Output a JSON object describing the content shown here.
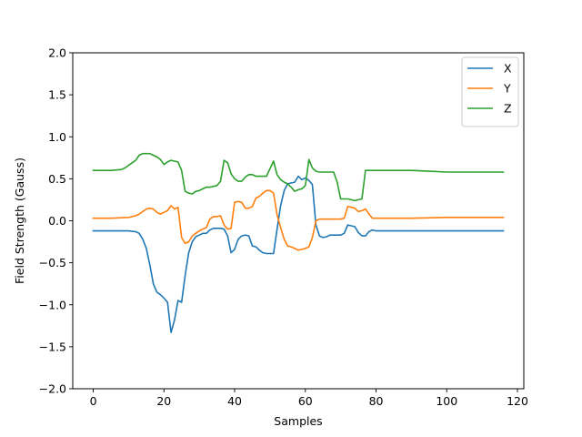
{
  "chart_data": {
    "type": "line",
    "title": "",
    "xlabel": "Samples",
    "ylabel": "Field Strength (Gauss)",
    "xlim": [
      -5.8,
      121.8
    ],
    "ylim": [
      -2.0,
      2.0
    ],
    "x_ticks": [
      0,
      20,
      40,
      60,
      80,
      100,
      120
    ],
    "y_ticks": [
      -2.0,
      -1.5,
      -1.0,
      -0.5,
      0.0,
      0.5,
      1.0,
      1.5,
      2.0
    ],
    "x_tick_labels": [
      "0",
      "20",
      "40",
      "60",
      "80",
      "100",
      "120"
    ],
    "y_tick_labels": [
      "−2.0",
      "−1.5",
      "−1.0",
      "−0.5",
      "0.0",
      "0.5",
      "1.0",
      "1.5",
      "2.0"
    ],
    "grid": false,
    "legend": {
      "position": "top-right"
    },
    "series": [
      {
        "name": "X",
        "color": "#1f77b4",
        "points": [
          [
            0,
            -0.12
          ],
          [
            5,
            -0.12
          ],
          [
            10,
            -0.12
          ],
          [
            12,
            -0.13
          ],
          [
            13,
            -0.15
          ],
          [
            14,
            -0.22
          ],
          [
            15,
            -0.33
          ],
          [
            16,
            -0.52
          ],
          [
            17,
            -0.75
          ],
          [
            18,
            -0.85
          ],
          [
            19,
            -0.88
          ],
          [
            20,
            -0.92
          ],
          [
            21,
            -0.97
          ],
          [
            22,
            -1.33
          ],
          [
            23,
            -1.18
          ],
          [
            24,
            -0.95
          ],
          [
            25,
            -0.97
          ],
          [
            26,
            -0.65
          ],
          [
            27,
            -0.38
          ],
          [
            28,
            -0.25
          ],
          [
            29,
            -0.19
          ],
          [
            30,
            -0.17
          ],
          [
            31,
            -0.15
          ],
          [
            32,
            -0.15
          ],
          [
            33,
            -0.11
          ],
          [
            34,
            -0.09
          ],
          [
            35,
            -0.09
          ],
          [
            36,
            -0.09
          ],
          [
            37,
            -0.1
          ],
          [
            38,
            -0.18
          ],
          [
            39,
            -0.38
          ],
          [
            40,
            -0.34
          ],
          [
            41,
            -0.22
          ],
          [
            42,
            -0.18
          ],
          [
            43,
            -0.17
          ],
          [
            44,
            -0.18
          ],
          [
            45,
            -0.3
          ],
          [
            46,
            -0.31
          ],
          [
            47,
            -0.35
          ],
          [
            48,
            -0.38
          ],
          [
            49,
            -0.39
          ],
          [
            50,
            -0.39
          ],
          [
            51,
            -0.39
          ],
          [
            52,
            -0.1
          ],
          [
            53,
            0.18
          ],
          [
            54,
            0.36
          ],
          [
            55,
            0.44
          ],
          [
            56,
            0.45
          ],
          [
            57,
            0.46
          ],
          [
            58,
            0.53
          ],
          [
            59,
            0.49
          ],
          [
            60,
            0.51
          ],
          [
            61,
            0.48
          ],
          [
            62,
            0.43
          ],
          [
            63,
            -0.05
          ],
          [
            64,
            -0.18
          ],
          [
            65,
            -0.2
          ],
          [
            66,
            -0.19
          ],
          [
            67,
            -0.17
          ],
          [
            70,
            -0.17
          ],
          [
            71,
            -0.15
          ],
          [
            72,
            -0.05
          ],
          [
            73,
            -0.06
          ],
          [
            74,
            -0.07
          ],
          [
            75,
            -0.14
          ],
          [
            76,
            -0.18
          ],
          [
            77,
            -0.18
          ],
          [
            78,
            -0.13
          ],
          [
            79,
            -0.11
          ],
          [
            80,
            -0.12
          ],
          [
            90,
            -0.12
          ],
          [
            100,
            -0.12
          ],
          [
            116,
            -0.12
          ]
        ]
      },
      {
        "name": "Y",
        "color": "#ff7f0e",
        "points": [
          [
            0,
            0.03
          ],
          [
            5,
            0.03
          ],
          [
            10,
            0.04
          ],
          [
            12,
            0.06
          ],
          [
            13,
            0.08
          ],
          [
            14,
            0.11
          ],
          [
            15,
            0.14
          ],
          [
            16,
            0.15
          ],
          [
            17,
            0.14
          ],
          [
            18,
            0.1
          ],
          [
            19,
            0.08
          ],
          [
            20,
            0.1
          ],
          [
            21,
            0.12
          ],
          [
            22,
            0.18
          ],
          [
            23,
            0.14
          ],
          [
            24,
            0.16
          ],
          [
            25,
            -0.2
          ],
          [
            26,
            -0.27
          ],
          [
            27,
            -0.25
          ],
          [
            28,
            -0.18
          ],
          [
            29,
            -0.15
          ],
          [
            30,
            -0.12
          ],
          [
            31,
            -0.1
          ],
          [
            32,
            -0.08
          ],
          [
            33,
            0.02
          ],
          [
            34,
            0.05
          ],
          [
            35,
            0.05
          ],
          [
            36,
            0.06
          ],
          [
            37,
            -0.05
          ],
          [
            38,
            -0.1
          ],
          [
            39,
            -0.09
          ],
          [
            40,
            0.22
          ],
          [
            41,
            0.23
          ],
          [
            42,
            0.22
          ],
          [
            43,
            0.15
          ],
          [
            44,
            0.15
          ],
          [
            45,
            0.17
          ],
          [
            46,
            0.27
          ],
          [
            47,
            0.29
          ],
          [
            48,
            0.33
          ],
          [
            49,
            0.36
          ],
          [
            50,
            0.36
          ],
          [
            51,
            0.33
          ],
          [
            52,
            0.07
          ],
          [
            53,
            -0.08
          ],
          [
            54,
            -0.22
          ],
          [
            55,
            -0.3
          ],
          [
            56,
            -0.31
          ],
          [
            57,
            -0.33
          ],
          [
            58,
            -0.35
          ],
          [
            59,
            -0.34
          ],
          [
            60,
            -0.33
          ],
          [
            61,
            -0.31
          ],
          [
            62,
            -0.2
          ],
          [
            63,
            0.0
          ],
          [
            64,
            0.02
          ],
          [
            65,
            0.02
          ],
          [
            70,
            0.02
          ],
          [
            71,
            0.03
          ],
          [
            72,
            0.17
          ],
          [
            73,
            0.16
          ],
          [
            74,
            0.15
          ],
          [
            75,
            0.11
          ],
          [
            76,
            0.12
          ],
          [
            77,
            0.14
          ],
          [
            78,
            0.08
          ],
          [
            79,
            0.03
          ],
          [
            80,
            0.03
          ],
          [
            90,
            0.03
          ],
          [
            100,
            0.04
          ],
          [
            116,
            0.04
          ]
        ]
      },
      {
        "name": "Z",
        "color": "#2ca02c",
        "points": [
          [
            0,
            0.6
          ],
          [
            5,
            0.6
          ],
          [
            8,
            0.61
          ],
          [
            9,
            0.63
          ],
          [
            10,
            0.66
          ],
          [
            11,
            0.69
          ],
          [
            12,
            0.72
          ],
          [
            13,
            0.78
          ],
          [
            14,
            0.8
          ],
          [
            15,
            0.8
          ],
          [
            16,
            0.8
          ],
          [
            17,
            0.78
          ],
          [
            18,
            0.76
          ],
          [
            19,
            0.73
          ],
          [
            20,
            0.67
          ],
          [
            21,
            0.7
          ],
          [
            22,
            0.72
          ],
          [
            23,
            0.71
          ],
          [
            24,
            0.7
          ],
          [
            25,
            0.6
          ],
          [
            26,
            0.35
          ],
          [
            27,
            0.33
          ],
          [
            28,
            0.32
          ],
          [
            29,
            0.35
          ],
          [
            30,
            0.36
          ],
          [
            31,
            0.38
          ],
          [
            32,
            0.4
          ],
          [
            33,
            0.4
          ],
          [
            34,
            0.41
          ],
          [
            35,
            0.42
          ],
          [
            36,
            0.47
          ],
          [
            37,
            0.72
          ],
          [
            38,
            0.69
          ],
          [
            39,
            0.56
          ],
          [
            40,
            0.5
          ],
          [
            41,
            0.47
          ],
          [
            42,
            0.47
          ],
          [
            43,
            0.52
          ],
          [
            44,
            0.55
          ],
          [
            45,
            0.55
          ],
          [
            46,
            0.53
          ],
          [
            47,
            0.53
          ],
          [
            48,
            0.53
          ],
          [
            49,
            0.53
          ],
          [
            50,
            0.62
          ],
          [
            51,
            0.71
          ],
          [
            52,
            0.55
          ],
          [
            53,
            0.49
          ],
          [
            54,
            0.46
          ],
          [
            55,
            0.44
          ],
          [
            56,
            0.4
          ],
          [
            57,
            0.35
          ],
          [
            58,
            0.37
          ],
          [
            59,
            0.38
          ],
          [
            60,
            0.42
          ],
          [
            61,
            0.73
          ],
          [
            62,
            0.63
          ],
          [
            63,
            0.59
          ],
          [
            64,
            0.58
          ],
          [
            65,
            0.58
          ],
          [
            66,
            0.58
          ],
          [
            67,
            0.58
          ],
          [
            68,
            0.58
          ],
          [
            69,
            0.46
          ],
          [
            70,
            0.26
          ],
          [
            71,
            0.26
          ],
          [
            72,
            0.26
          ],
          [
            73,
            0.25
          ],
          [
            74,
            0.24
          ],
          [
            75,
            0.25
          ],
          [
            76,
            0.26
          ],
          [
            77,
            0.6
          ],
          [
            78,
            0.6
          ],
          [
            80,
            0.6
          ],
          [
            90,
            0.6
          ],
          [
            95,
            0.59
          ],
          [
            100,
            0.58
          ],
          [
            110,
            0.58
          ],
          [
            116,
            0.58
          ]
        ]
      }
    ]
  }
}
